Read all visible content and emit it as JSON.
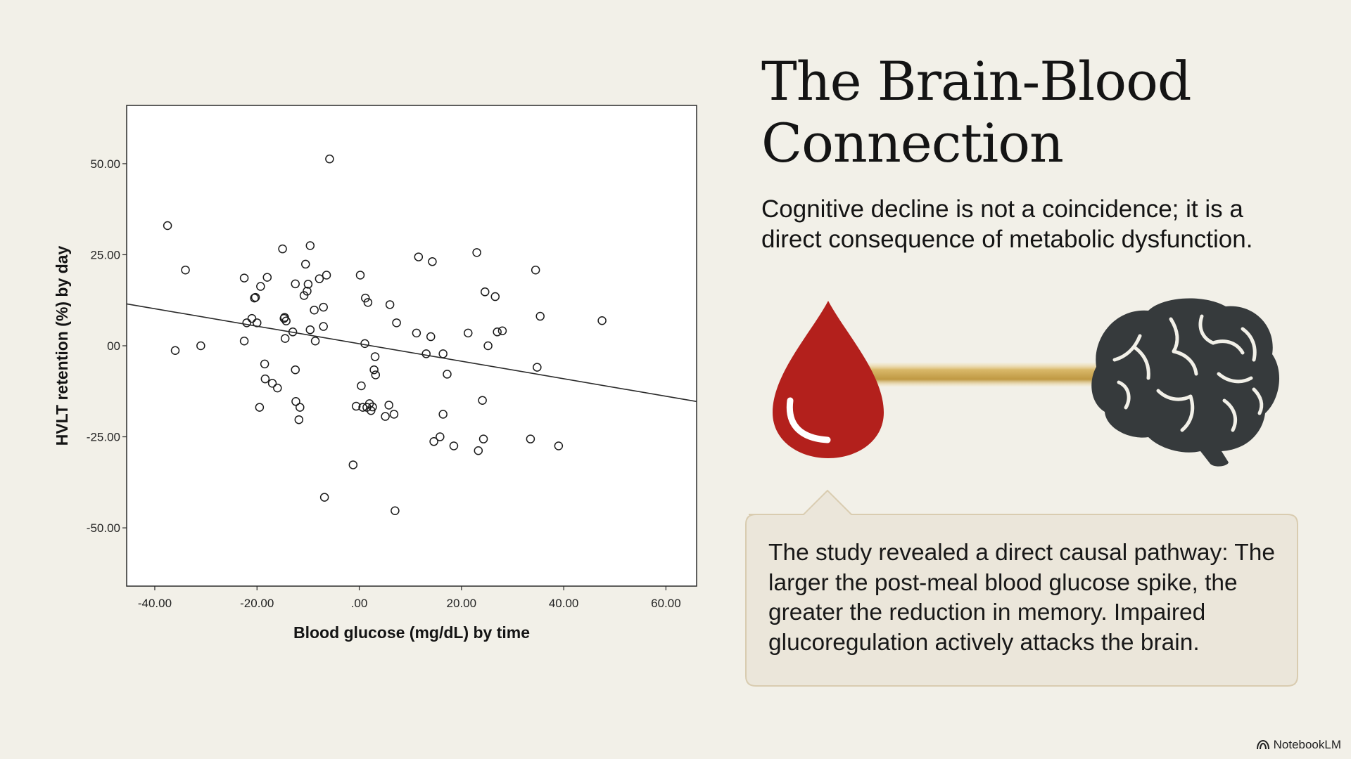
{
  "slide": {
    "title": "The Brain-Blood Connection",
    "subtitle": "Cognitive decline is not a coincidence; it is a direct consequence of metabolic dysfunction.",
    "callout": "The study revealed a direct causal pathway: The larger the post-meal blood glucose spike, the greater the reduction in memory. Impaired glucoregulation actively attacks the brain.",
    "brand": "NotebookLM",
    "icons": {
      "drop": "blood-drop-icon",
      "brain": "brain-icon",
      "logo": "notebooklm-logo-icon"
    },
    "colors": {
      "background": "#f2f0e8",
      "blood": "#b3201c",
      "brain": "#363a3c",
      "connector": "#c9a24d",
      "callout_fill": "#ebe6da",
      "callout_border": "#d9ccb0"
    }
  },
  "chart_data": {
    "type": "scatter",
    "xlabel": "Blood glucose (mg/dL) by time",
    "ylabel": "HVLT retention (%) by day",
    "xlim": [
      -45.5,
      66
    ],
    "ylim": [
      -66,
      66
    ],
    "xticks": [
      -40,
      -20,
      0,
      20,
      40,
      60
    ],
    "xtick_labels": [
      "-40.00",
      "-20.00",
      ".00",
      "20.00",
      "40.00",
      "60.00"
    ],
    "yticks": [
      50,
      25,
      0,
      -25,
      -50
    ],
    "ytick_labels": [
      "50.00",
      "25.00",
      "00",
      "-25.00",
      "-50.00"
    ],
    "grid": false,
    "regression_line": {
      "x": [
        -45.5,
        66
      ],
      "y": [
        11.5,
        -15.3
      ]
    },
    "points": [
      [
        -37.5,
        33
      ],
      [
        -36,
        -1.3
      ],
      [
        -34,
        20.8
      ],
      [
        -31,
        0
      ],
      [
        -22.5,
        18.6
      ],
      [
        -22.5,
        1.3
      ],
      [
        -22,
        6.3
      ],
      [
        -21,
        7.5
      ],
      [
        -20.5,
        13.1
      ],
      [
        -20.3,
        13.3
      ],
      [
        -20,
        6.3
      ],
      [
        -19.5,
        -16.9
      ],
      [
        -19.3,
        16.3
      ],
      [
        -18.5,
        -5
      ],
      [
        -18.4,
        -9.1
      ],
      [
        -18,
        18.8
      ],
      [
        -17,
        -10.3
      ],
      [
        -16,
        -11.6
      ],
      [
        -15,
        26.6
      ],
      [
        -14.7,
        7.5
      ],
      [
        -14.6,
        7.8
      ],
      [
        -14.5,
        2
      ],
      [
        -14.3,
        6.8
      ],
      [
        -13,
        3.8
      ],
      [
        -12.5,
        -6.6
      ],
      [
        -12.5,
        17
      ],
      [
        -12.4,
        -15.3
      ],
      [
        -11.8,
        -20.3
      ],
      [
        -11.6,
        -16.9
      ],
      [
        -10.8,
        13.8
      ],
      [
        -10.5,
        22.4
      ],
      [
        -10.2,
        15
      ],
      [
        -10,
        16.9
      ],
      [
        -9.6,
        4.4
      ],
      [
        -9.6,
        27.5
      ],
      [
        -8.8,
        9.8
      ],
      [
        -8.6,
        1.3
      ],
      [
        -7.8,
        18.4
      ],
      [
        -7,
        10.6
      ],
      [
        -7,
        5.3
      ],
      [
        -6.8,
        -41.6
      ],
      [
        -6.4,
        19.4
      ],
      [
        -5.8,
        51.3
      ],
      [
        -1.2,
        -32.7
      ],
      [
        -0.6,
        -16.6
      ],
      [
        0.2,
        19.4
      ],
      [
        0.4,
        -11
      ],
      [
        0.7,
        -16.9
      ],
      [
        1.1,
        0.6
      ],
      [
        1.2,
        13.1
      ],
      [
        1.5,
        -16.9
      ],
      [
        1.7,
        11.9
      ],
      [
        2,
        -15.9
      ],
      [
        2.3,
        -17.8
      ],
      [
        2.6,
        -16.8
      ],
      [
        2.9,
        -6.6
      ],
      [
        3.1,
        -3
      ],
      [
        3.2,
        -8
      ],
      [
        5.1,
        -19.4
      ],
      [
        5.8,
        -16.3
      ],
      [
        6,
        11.3
      ],
      [
        6.8,
        -18.8
      ],
      [
        7,
        -45.3
      ],
      [
        7.3,
        6.3
      ],
      [
        11.2,
        3.5
      ],
      [
        11.6,
        24.4
      ],
      [
        13.1,
        -2.2
      ],
      [
        14,
        2.5
      ],
      [
        14.3,
        23.1
      ],
      [
        14.6,
        -26.3
      ],
      [
        15.8,
        -25
      ],
      [
        16.4,
        -2.2
      ],
      [
        16.4,
        -18.8
      ],
      [
        17.2,
        -7.8
      ],
      [
        18.5,
        -27.5
      ],
      [
        21.3,
        3.5
      ],
      [
        23,
        25.6
      ],
      [
        23.3,
        -28.8
      ],
      [
        24.1,
        -15
      ],
      [
        24.3,
        -25.6
      ],
      [
        24.6,
        14.8
      ],
      [
        25.2,
        0
      ],
      [
        26.6,
        13.5
      ],
      [
        27,
        3.8
      ],
      [
        28,
        4.1
      ],
      [
        33.5,
        -25.6
      ],
      [
        34.5,
        20.8
      ],
      [
        34.8,
        -5.9
      ],
      [
        35.4,
        8.1
      ],
      [
        39,
        -27.5
      ],
      [
        47.5,
        6.9
      ]
    ]
  }
}
